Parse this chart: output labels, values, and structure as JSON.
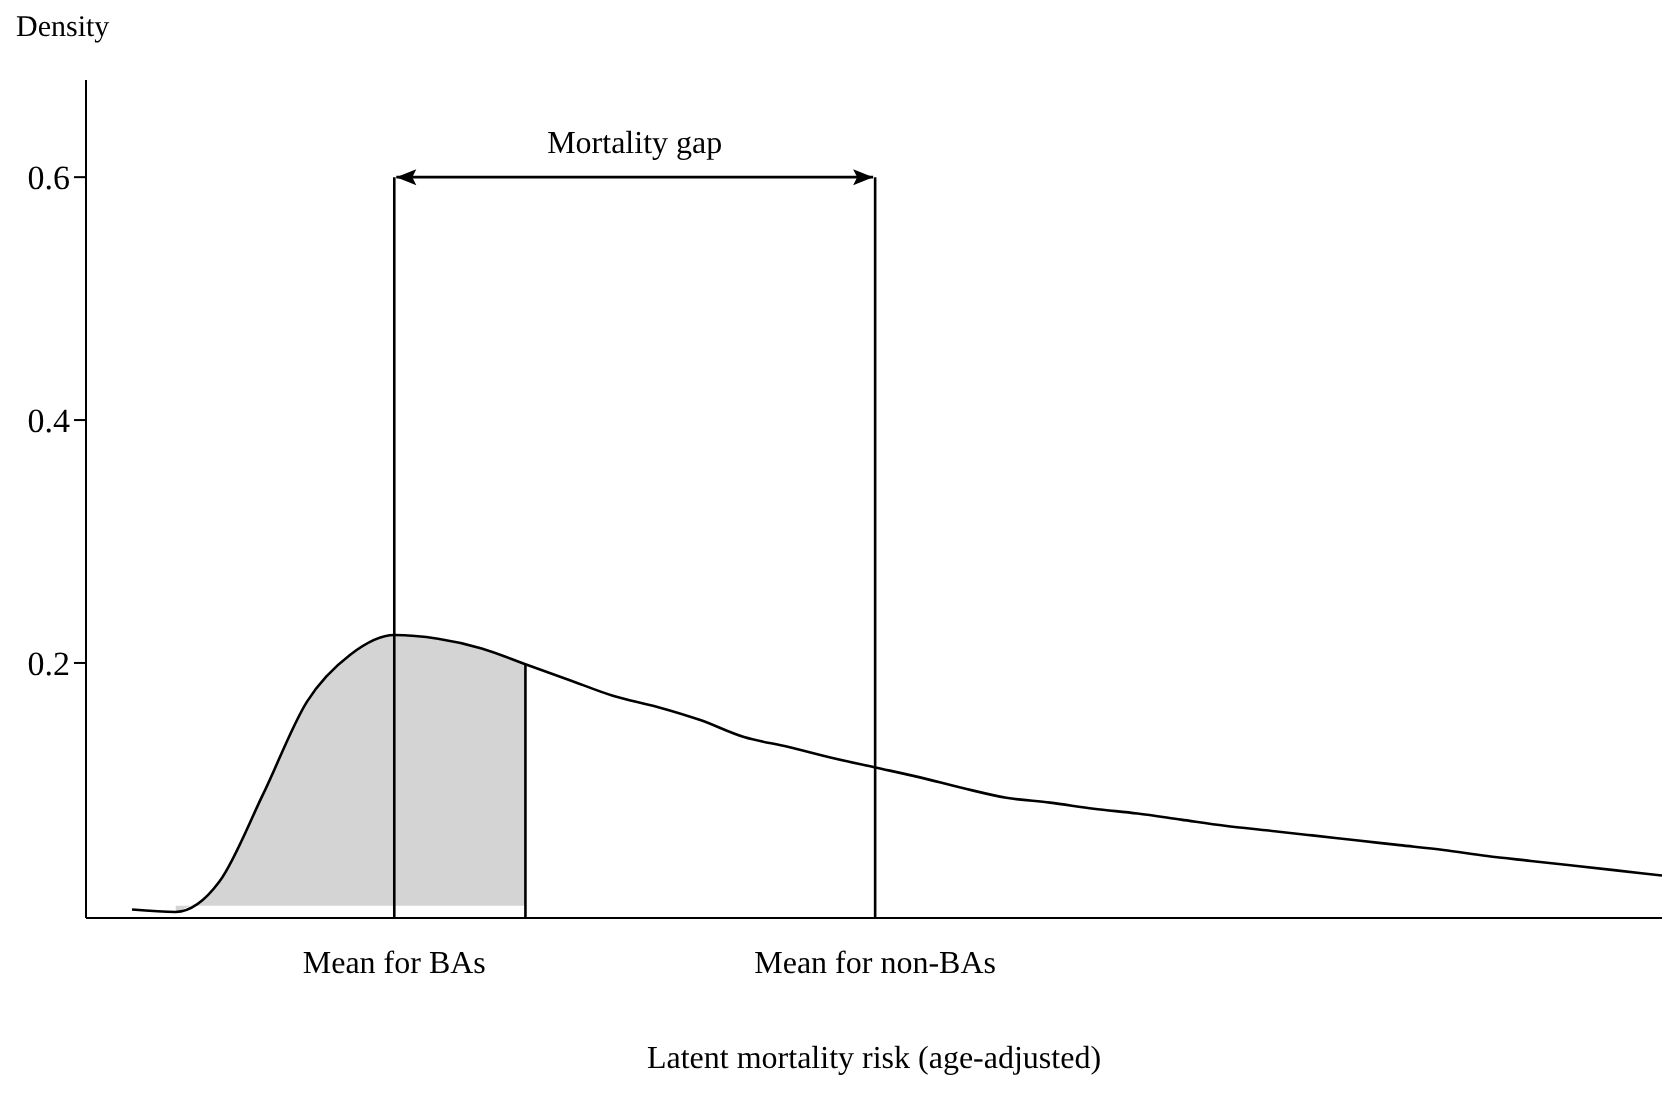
{
  "chart_data": {
    "type": "line",
    "ylabel": "Density",
    "xlabel": "Latent mortality risk (age-adjusted)",
    "categories": [
      null,
      null,
      null,
      null,
      null,
      null,
      "Mean for BAs",
      null,
      null,
      null,
      null,
      null,
      null,
      null,
      null,
      null,
      null,
      "Mean for non-BAs",
      null,
      null,
      null,
      null,
      null,
      null,
      null,
      null,
      null,
      null,
      null,
      null,
      null,
      null,
      null,
      null,
      null,
      null
    ],
    "ylim": [
      -0.01,
      0.68
    ],
    "yticks": [
      0.2,
      0.4,
      0.6
    ],
    "marker": "none",
    "series": [
      {
        "type": "area",
        "color": "#d4d4d4",
        "values": [
          null,
          -0.005,
          0.02,
          0.092,
          0.168,
          0.207,
          0.223,
          0.22,
          0.212,
          0.199,
          null,
          null,
          null,
          null,
          null,
          null,
          null,
          null,
          null,
          null,
          null,
          null,
          null,
          null,
          null,
          null,
          null,
          null,
          null,
          null,
          null,
          null,
          null,
          null,
          null,
          null
        ]
      },
      {
        "color": "#000000",
        "values": [
          -0.003,
          -0.005,
          0.02,
          0.092,
          0.168,
          0.207,
          0.223,
          0.22,
          0.212,
          0.199,
          0.186,
          0.173,
          0.164,
          0.153,
          0.139,
          0.131,
          0.122,
          0.114,
          0.106,
          0.097,
          0.089,
          0.085,
          0.08,
          0.076,
          0.071,
          0.066,
          0.062,
          0.058,
          0.054,
          0.05,
          0.046,
          0.041,
          0.037,
          0.033,
          0.029,
          0.025
        ]
      }
    ],
    "ref_lines": [
      {
        "axis": "x",
        "value": "Mean for BAs",
        "color": "#000000"
      },
      {
        "axis": "x",
        "value": "Mean for non-BAs",
        "color": "#000000"
      }
    ],
    "annotations": [
      "Mortality gap"
    ]
  }
}
